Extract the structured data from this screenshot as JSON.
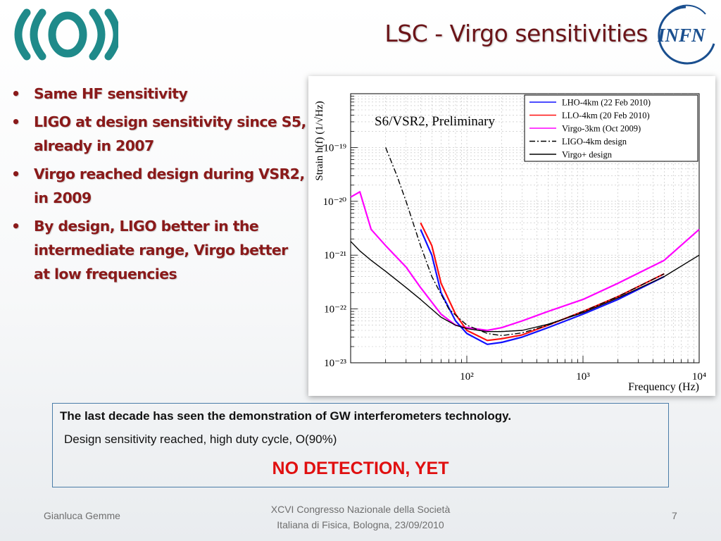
{
  "slide": {
    "title": "LSC - Virgo sensitivities",
    "page_number": "7"
  },
  "bullets": [
    "Same HF sensitivity",
    "LIGO at design sensitivity since S5, already in 2007",
    "Virgo reached design during VSR2, in 2009",
    "By design, LIGO better in the intermediate range, Virgo better at low frequencies"
  ],
  "textbox": {
    "line1": "The last decade has seen the demonstration of GW interferometers technology.",
    "line2": "Design sensitivity reached, high duty cycle, O(90%)",
    "line3": "NO DETECTION, YET"
  },
  "footer": {
    "author": "Gianluca Gemme",
    "conference_line1": "XCVI Congresso Nazionale della Società",
    "conference_line2": "Italiana di Fisica, Bologna, 23/09/2010"
  },
  "logos": {
    "left": "virgo-logo",
    "right_text": "INFN"
  },
  "colors": {
    "title": "#6b1418",
    "bullet_text": "#8a1a1a",
    "no_detection": "#e01010",
    "lho": "#1010ff",
    "llo": "#ff1010",
    "virgo": "#ff00ff",
    "design": "#000000",
    "logo_teal": "#1f8a8a",
    "infn_blue": "#1a4f8f"
  },
  "chart_data": {
    "type": "line",
    "annotation": "S6/VSR2, Preliminary",
    "xlabel": "Frequency (Hz)",
    "ylabel": "Strain h(f) (1/√Hz)",
    "xscale": "log",
    "yscale": "log",
    "xlim": [
      10,
      10000
    ],
    "ylim": [
      1e-23,
      1e-18
    ],
    "x_ticks": [
      "10²",
      "10³",
      "10⁴"
    ],
    "y_ticks": [
      "10⁻¹⁹",
      "10⁻²⁰",
      "10⁻²¹",
      "10⁻²²",
      "10⁻²³"
    ],
    "grid": true,
    "legend_position": "top-right",
    "series": [
      {
        "name": "LHO-4km (22 Feb 2010)",
        "color": "#1010ff",
        "style": "solid",
        "x": [
          40,
          50,
          60,
          80,
          100,
          150,
          200,
          300,
          500,
          1000,
          2000,
          5000
        ],
        "y": [
          3e-21,
          1e-21,
          2e-22,
          6e-23,
          3.5e-23,
          2.2e-23,
          2.4e-23,
          3e-23,
          4.5e-23,
          8e-23,
          1.5e-22,
          4e-22
        ]
      },
      {
        "name": "LLO-4km (20 Feb 2010)",
        "color": "#ff1010",
        "style": "solid",
        "x": [
          40,
          50,
          60,
          80,
          100,
          150,
          200,
          300,
          500,
          1000,
          2000,
          5000
        ],
        "y": [
          4e-21,
          1.5e-21,
          3e-22,
          8e-23,
          4e-23,
          2.6e-23,
          2.8e-23,
          3.3e-23,
          5e-23,
          9e-23,
          1.7e-22,
          4.5e-22
        ]
      },
      {
        "name": "Virgo-3km (Oct 2009)",
        "color": "#ff00ff",
        "style": "solid",
        "x": [
          10,
          12,
          15,
          20,
          30,
          40,
          60,
          80,
          100,
          150,
          200,
          300,
          500,
          1000,
          2000,
          5000,
          10000
        ],
        "y": [
          1.2e-20,
          1.5e-20,
          3e-21,
          1.5e-21,
          6e-22,
          2.5e-22,
          8e-23,
          5e-23,
          4.5e-23,
          4e-23,
          4.5e-23,
          6e-23,
          9e-23,
          1.5e-22,
          3e-22,
          8e-22,
          3e-21
        ]
      },
      {
        "name": "LIGO-4km  design",
        "color": "#000000",
        "style": "dash-dot",
        "x": [
          20,
          25,
          30,
          40,
          50,
          70,
          100,
          150,
          200,
          300,
          500,
          1000,
          2000,
          5000
        ],
        "y": [
          1e-19,
          3e-20,
          1e-20,
          1.5e-21,
          4e-22,
          1e-22,
          5e-23,
          3.5e-23,
          3.2e-23,
          3.6e-23,
          5e-23,
          9e-23,
          1.7e-22,
          4.5e-22
        ]
      },
      {
        "name": "Virgo+ design",
        "color": "#000000",
        "style": "solid",
        "x": [
          10,
          12,
          15,
          20,
          30,
          40,
          60,
          80,
          100,
          150,
          200,
          300,
          500,
          1000,
          2000,
          5000,
          10000
        ],
        "y": [
          1.8e-21,
          1.2e-21,
          8e-22,
          5e-22,
          2.5e-22,
          1.5e-22,
          7e-23,
          5e-23,
          4.3e-23,
          3.8e-23,
          3.8e-23,
          4e-23,
          5.2e-23,
          8.5e-23,
          1.6e-22,
          4e-22,
          1e-21
        ]
      }
    ]
  }
}
